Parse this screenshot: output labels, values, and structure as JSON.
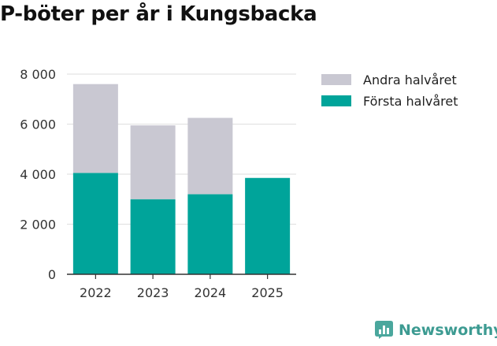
{
  "chart_data": {
    "type": "bar",
    "stacked": true,
    "title": "P-böter per år i Kungsbacka",
    "categories": [
      "2022",
      "2023",
      "2024",
      "2025"
    ],
    "series": [
      {
        "name": "Första halvåret",
        "color": "#00a49a",
        "values": [
          4050,
          3000,
          3200,
          3850
        ]
      },
      {
        "name": "Andra halvåret",
        "color": "#c9c8d2",
        "values": [
          3550,
          2950,
          3050,
          0
        ]
      }
    ],
    "ylim": [
      0,
      8000
    ],
    "yticks": [
      0,
      2000,
      4000,
      6000,
      8000
    ],
    "ytick_labels": [
      "0",
      "2 000",
      "4 000",
      "6 000",
      "8 000"
    ],
    "grid": true,
    "legend_position": "right",
    "legend": [
      "Andra halvåret",
      "Första halvåret"
    ]
  },
  "brand": {
    "name": "Newsworthy",
    "icon": "bar-chart-logo-icon",
    "color": "#3d9b92"
  }
}
